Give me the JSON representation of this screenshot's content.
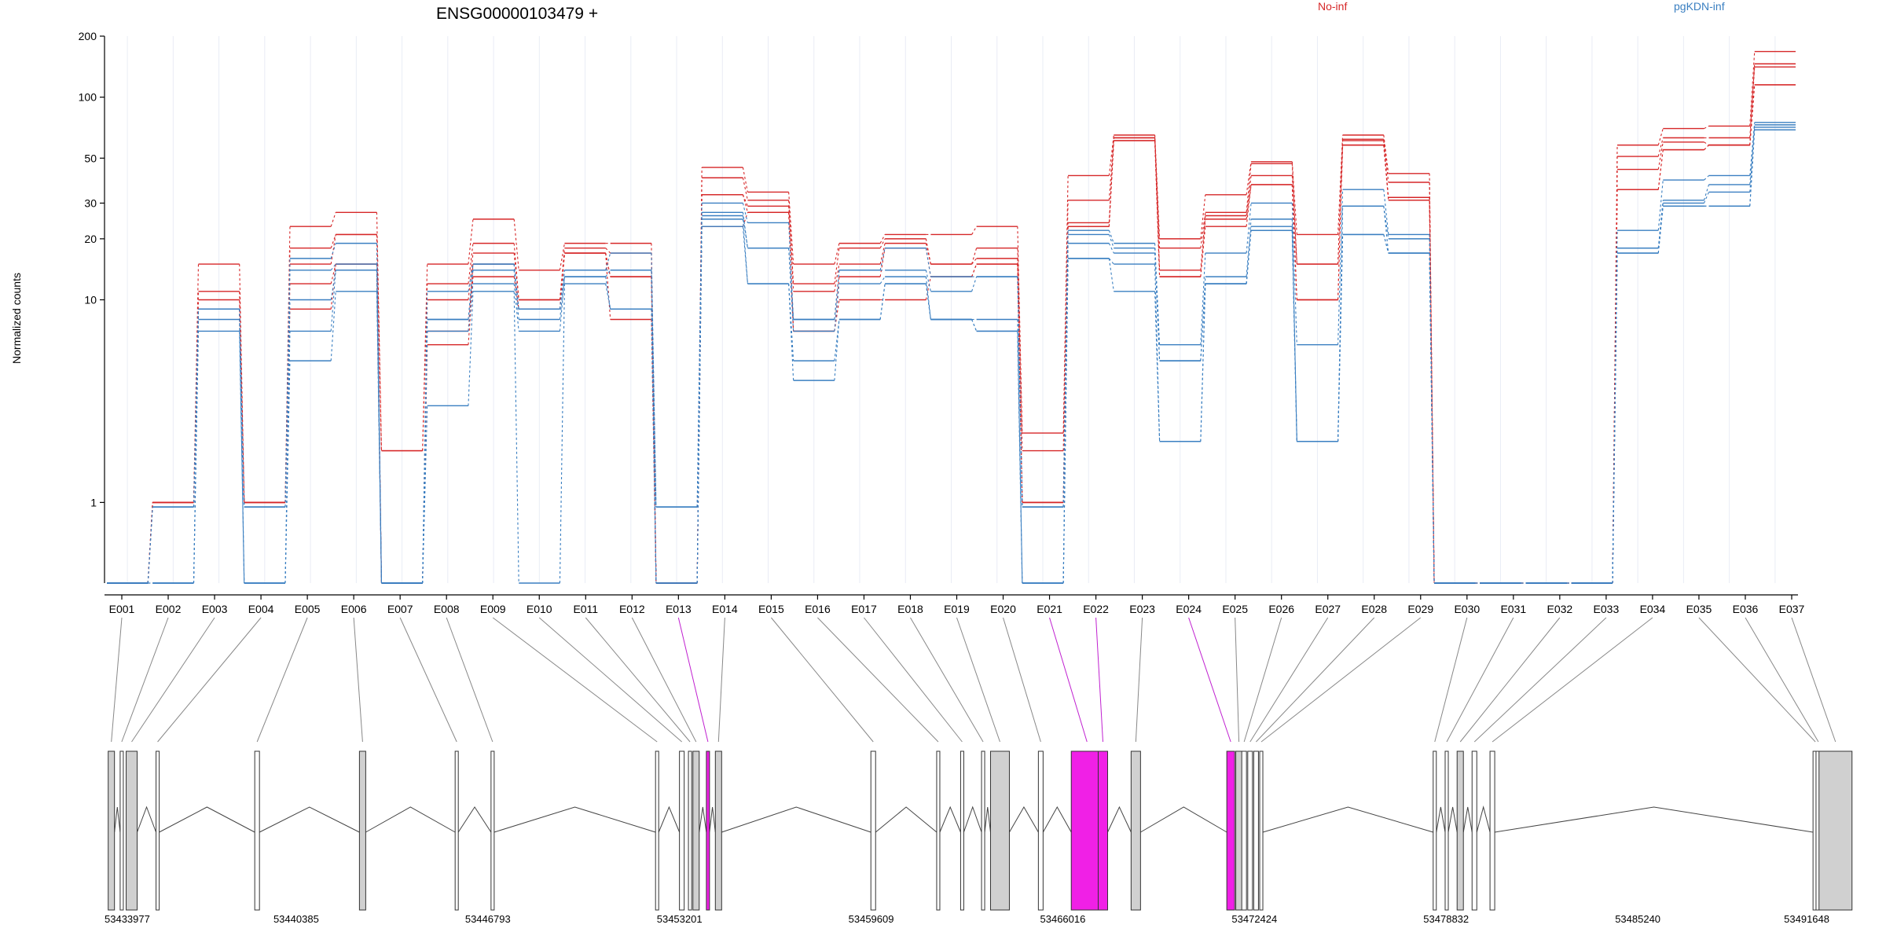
{
  "chart_data": {
    "type": "line",
    "title": "ENSG00000103479 +",
    "ylabel": "Normalized counts",
    "yscale": "log",
    "y_ticks": [
      1,
      10,
      20,
      30,
      50,
      100,
      200
    ],
    "y_tick_labels": [
      "1",
      "10",
      "20",
      "30",
      "50",
      "100",
      "200"
    ],
    "ylim": [
      0.4,
      200
    ],
    "categories": [
      "E001",
      "E002",
      "E003",
      "E004",
      "E005",
      "E006",
      "E007",
      "E008",
      "E009",
      "E010",
      "E011",
      "E012",
      "E013",
      "E014",
      "E015",
      "E016",
      "E017",
      "E018",
      "E019",
      "E020",
      "E021",
      "E022",
      "E023",
      "E024",
      "E025",
      "E026",
      "E027",
      "E028",
      "E029",
      "E030",
      "E031",
      "E032",
      "E033",
      "E034",
      "E035",
      "E036",
      "E037"
    ],
    "highlighted_exons": [
      "E013",
      "E021",
      "E022",
      "E024"
    ],
    "legend": [
      {
        "name": "No-inf",
        "color": "#d62728"
      },
      {
        "name": "pgKDN-inf",
        "color": "#3a7fc1"
      }
    ],
    "series": [
      {
        "name": "No-inf",
        "values": [
          0.4,
          1,
          15,
          1,
          23,
          27,
          1.8,
          15,
          25,
          14,
          19,
          19,
          0.4,
          45,
          34,
          15,
          19,
          21,
          21,
          23,
          2.2,
          41,
          65,
          20,
          33,
          48,
          21,
          65,
          42,
          0.4,
          0.4,
          0.4,
          0.4,
          58,
          70,
          72,
          168
        ]
      },
      {
        "name": "No-inf",
        "values": [
          0.4,
          1,
          11,
          1,
          18,
          21,
          1.8,
          12,
          19,
          10,
          18,
          17,
          0.4,
          40,
          31,
          12,
          18,
          20,
          15,
          18,
          1.8,
          31,
          63,
          18,
          27,
          47,
          15,
          62,
          38,
          0.4,
          0.4,
          0.4,
          0.4,
          51,
          63,
          63,
          146
        ]
      },
      {
        "name": "No-inf",
        "values": [
          0.4,
          1,
          10,
          1,
          15,
          21,
          0.4,
          10,
          17,
          10,
          17,
          13,
          0.4,
          33,
          29,
          11,
          15,
          19,
          15,
          16,
          1,
          24,
          63,
          14,
          26,
          41,
          15,
          61,
          32,
          0.4,
          0.4,
          0.4,
          0.4,
          44,
          60,
          58,
          141
        ]
      },
      {
        "name": "No-inf",
        "values": [
          0.4,
          1,
          9,
          1,
          12,
          15,
          0.4,
          7,
          15,
          9,
          17,
          13,
          0.4,
          33,
          27,
          7,
          13,
          18,
          13,
          15,
          1,
          23,
          61,
          13,
          25,
          37,
          10,
          58,
          31,
          0.4,
          0.4,
          0.4,
          0.4,
          35,
          55,
          58,
          115
        ]
      },
      {
        "name": "No-inf",
        "values": [
          0.4,
          1,
          9,
          1,
          9,
          15,
          0.4,
          6,
          13,
          9,
          17,
          8,
          0.4,
          23,
          27,
          7,
          10,
          10,
          13,
          15,
          1,
          23,
          61,
          13,
          23,
          37,
          10,
          58,
          31,
          0.4,
          0.4,
          0.4,
          0.4,
          35,
          55,
          58,
          115
        ]
      },
      {
        "name": "pgKDN-inf",
        "values": [
          0.4,
          0.95,
          9,
          0.95,
          16,
          19,
          0.4,
          11,
          15,
          9,
          14,
          17,
          0.95,
          30,
          24,
          8,
          14,
          18,
          13,
          13,
          0.95,
          22,
          19,
          6,
          17,
          30,
          6,
          35,
          21,
          0.4,
          0.4,
          0.4,
          0.4,
          22,
          39,
          41,
          75
        ]
      },
      {
        "name": "pgKDN-inf",
        "values": [
          0.4,
          0.95,
          9,
          0.95,
          14,
          15,
          0.4,
          8,
          15,
          9,
          14,
          14,
          0.95,
          27,
          18,
          8,
          14,
          14,
          11,
          13,
          0.95,
          21,
          18,
          5,
          13,
          25,
          2,
          29,
          20,
          0.4,
          0.4,
          0.4,
          0.4,
          18,
          31,
          37,
          73
        ]
      },
      {
        "name": "pgKDN-inf",
        "values": [
          0.4,
          0.4,
          9,
          0.4,
          10,
          14,
          0.4,
          8,
          14,
          8,
          13,
          14,
          0.4,
          26,
          18,
          7,
          12,
          13,
          8,
          8,
          0.4,
          19,
          17,
          5,
          12,
          23,
          2,
          29,
          17,
          0.4,
          0.4,
          0.4,
          0.4,
          18,
          30,
          34,
          71
        ]
      },
      {
        "name": "pgKDN-inf",
        "values": [
          0.4,
          0.4,
          8,
          0.4,
          7,
          14,
          0.4,
          7,
          12,
          7,
          13,
          9,
          0.4,
          25,
          12,
          5,
          8,
          12,
          8,
          7,
          0.4,
          16,
          15,
          2,
          12,
          22,
          2,
          21,
          17,
          0.4,
          0.4,
          0.4,
          0.4,
          17,
          29,
          29,
          69
        ]
      },
      {
        "name": "pgKDN-inf",
        "values": [
          0.4,
          0.4,
          7,
          0.4,
          5,
          11,
          0.4,
          3,
          11,
          0.4,
          12,
          9,
          0.4,
          23,
          12,
          4,
          8,
          12,
          8,
          7,
          0.4,
          16,
          11,
          2,
          12,
          22,
          2,
          21,
          17,
          0.4,
          0.4,
          0.4,
          0.4,
          17,
          29,
          29,
          69
        ]
      }
    ],
    "genomic_axis_labels": [
      "53433977",
      "53440385",
      "53446793",
      "53453201",
      "53459609",
      "53466016",
      "53472424",
      "53478832",
      "53485240",
      "53491648"
    ],
    "genomic_range": [
      53433977,
      53491648
    ],
    "exon_genomic_positions": [
      53434100,
      53434500,
      53434700,
      53435700,
      53439000,
      53442500,
      53445700,
      53446900,
      53452400,
      53453200,
      53453500,
      53453650,
      53454100,
      53454400,
      53459600,
      53461800,
      53462600,
      53463300,
      53463600,
      53465200,
      53466300,
      53467200,
      53468300,
      53471500,
      53471800,
      53472000,
      53472200,
      53472400,
      53472600,
      53478400,
      53478800,
      53479200,
      53479700,
      53480300,
      53491100,
      53491200,
      53491300
    ]
  }
}
